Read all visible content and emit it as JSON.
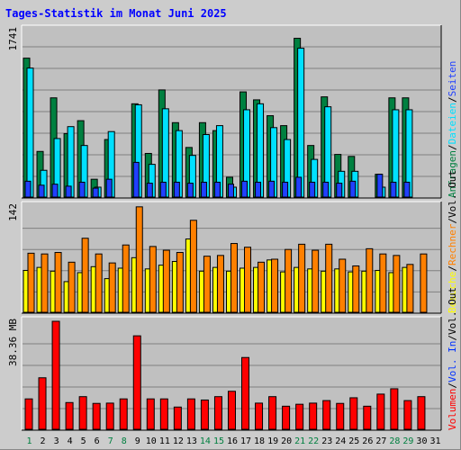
{
  "title": "Tages-Statistik im Monat Juni 2025",
  "days": [
    "1",
    "2",
    "3",
    "4",
    "5",
    "6",
    "7",
    "8",
    "9",
    "10",
    "11",
    "12",
    "13",
    "14",
    "15",
    "16",
    "17",
    "18",
    "19",
    "20",
    "21",
    "22",
    "23",
    "24",
    "25",
    "26",
    "27",
    "28",
    "29",
    "30",
    "31"
  ],
  "weekend_days": [
    "1",
    "7",
    "8",
    "14",
    "15",
    "21",
    "22",
    "28",
    "29"
  ],
  "colors": {
    "title": "#0000ff",
    "weekday_label": "#000000",
    "weekend_label": "#008040",
    "hits": "#008040",
    "files": "#00e0ff",
    "pages": "#2040ff",
    "visits": "#ffff00",
    "sites": "#ff8000",
    "kbytes": "#ff0000",
    "panel_bg": "#c0c0c0",
    "grid": "#808080"
  },
  "chart_data": [
    {
      "type": "bar",
      "name": "top",
      "y_max_label": "1741",
      "ylim": [
        0,
        1741
      ],
      "grid": true,
      "legend": [
        "Anfragen",
        "Dateien",
        "Seiten"
      ],
      "legend_separator": "/",
      "categories": [
        "1",
        "2",
        "3",
        "4",
        "5",
        "6",
        "7",
        "8",
        "9",
        "10",
        "11",
        "12",
        "13",
        "14",
        "15",
        "16",
        "17",
        "18",
        "19",
        "20",
        "21",
        "22",
        "23",
        "24",
        "25",
        "26",
        "27",
        "28",
        "29",
        "30",
        "31"
      ],
      "series": [
        {
          "name": "Anfragen",
          "color_key": "hits",
          "values": [
            1400,
            460,
            1000,
            640,
            770,
            180,
            580,
            0,
            940,
            440,
            1080,
            750,
            500,
            750,
            670,
            200,
            1060,
            980,
            820,
            720,
            1600,
            520,
            1010,
            430,
            410,
            0,
            230,
            1000,
            1000,
            0,
            0
          ]
        },
        {
          "name": "Dateien",
          "color_key": "files",
          "values": [
            1300,
            270,
            590,
            710,
            520,
            100,
            660,
            0,
            930,
            330,
            890,
            670,
            420,
            630,
            720,
            100,
            880,
            940,
            700,
            580,
            1500,
            380,
            910,
            260,
            260,
            0,
            100,
            880,
            880,
            0,
            0
          ]
        },
        {
          "name": "Seiten",
          "color_key": "pages",
          "values": [
            160,
            120,
            130,
            110,
            150,
            90,
            180,
            0,
            350,
            140,
            150,
            150,
            140,
            150,
            150,
            130,
            160,
            150,
            160,
            150,
            200,
            150,
            150,
            140,
            160,
            0,
            230,
            150,
            150,
            0,
            0
          ]
        }
      ]
    },
    {
      "type": "bar",
      "name": "middle",
      "y_max_label": "142",
      "ylim": [
        0,
        142
      ],
      "grid": true,
      "legend": [
        "Besuche",
        "Rechner",
        "Vol. Out"
      ],
      "legend_separator": "/",
      "categories": [
        "1",
        "2",
        "3",
        "4",
        "5",
        "6",
        "7",
        "8",
        "9",
        "10",
        "11",
        "12",
        "13",
        "14",
        "15",
        "16",
        "17",
        "18",
        "19",
        "20",
        "21",
        "22",
        "23",
        "24",
        "25",
        "26",
        "27",
        "28",
        "29",
        "30",
        "31"
      ],
      "series": [
        {
          "name": "Besuche",
          "color_key": "visits",
          "values": [
            56,
            60,
            55,
            41,
            53,
            61,
            45,
            59,
            73,
            58,
            63,
            68,
            98,
            55,
            60,
            55,
            59,
            60,
            70,
            54,
            60,
            58,
            55,
            58,
            54,
            55,
            56,
            53,
            60,
            0,
            0
          ]
        },
        {
          "name": "Rechner",
          "color_key": "sites",
          "values": [
            79,
            78,
            80,
            67,
            99,
            78,
            66,
            90,
            141,
            88,
            83,
            80,
            123,
            75,
            76,
            92,
            87,
            67,
            71,
            84,
            91,
            83,
            91,
            71,
            62,
            85,
            78,
            76,
            64,
            78,
            0
          ]
        }
      ]
    },
    {
      "type": "bar",
      "name": "bottom",
      "y_max_label": "38.36 MB",
      "ylim": [
        0,
        38.36
      ],
      "grid": true,
      "legend": [
        "Volumen",
        "Vol. In",
        "Vol. Out"
      ],
      "legend_separator": "/",
      "categories": [
        "1",
        "2",
        "3",
        "4",
        "5",
        "6",
        "7",
        "8",
        "9",
        "10",
        "11",
        "12",
        "13",
        "14",
        "15",
        "16",
        "17",
        "18",
        "19",
        "20",
        "21",
        "22",
        "23",
        "24",
        "25",
        "26",
        "27",
        "28",
        "29",
        "30",
        "31"
      ],
      "series": [
        {
          "name": "Volumen",
          "color_key": "kbytes",
          "values": [
            10.8,
            18.3,
            38.36,
            9.5,
            11.6,
            9.2,
            9.3,
            10.8,
            33.2,
            10.8,
            10.8,
            7.9,
            10.8,
            10.4,
            11.6,
            13.5,
            25.5,
            9.3,
            11.6,
            8.2,
            8.9,
            9.3,
            10.2,
            9.2,
            11.2,
            8.2,
            12.5,
            14.4,
            10.2,
            11.6,
            0
          ]
        }
      ]
    }
  ]
}
